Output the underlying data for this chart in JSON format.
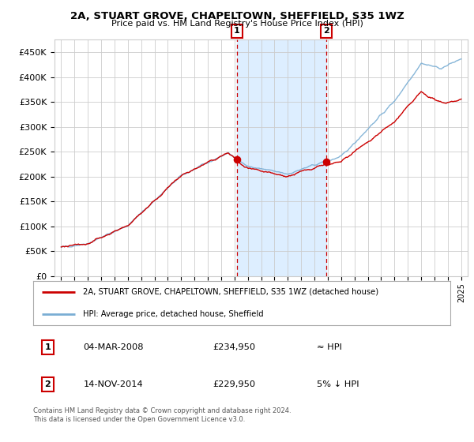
{
  "title": "2A, STUART GROVE, CHAPELTOWN, SHEFFIELD, S35 1WZ",
  "subtitle": "Price paid vs. HM Land Registry's House Price Index (HPI)",
  "legend_line1": "2A, STUART GROVE, CHAPELTOWN, SHEFFIELD, S35 1WZ (detached house)",
  "legend_line2": "HPI: Average price, detached house, Sheffield",
  "transaction1_date": "04-MAR-2008",
  "transaction1_price": 234950,
  "transaction1_label": "≈ HPI",
  "transaction2_date": "14-NOV-2014",
  "transaction2_price": 229950,
  "transaction2_label": "5% ↓ HPI",
  "footnote": "Contains HM Land Registry data © Crown copyright and database right 2024.\nThis data is licensed under the Open Government Licence v3.0.",
  "hpi_color": "#7aaed4",
  "price_color": "#cc0000",
  "marker_color": "#cc0000",
  "background_color": "#ffffff",
  "grid_color": "#cccccc",
  "shading_color": "#ddeeff",
  "dashed_line_color": "#cc0000",
  "ylim": [
    0,
    475000
  ],
  "yticks": [
    0,
    50000,
    100000,
    150000,
    200000,
    250000,
    300000,
    350000,
    400000,
    450000
  ],
  "transaction1_x": 2008.17,
  "transaction2_x": 2014.87,
  "start_year": 1995,
  "end_year": 2025
}
